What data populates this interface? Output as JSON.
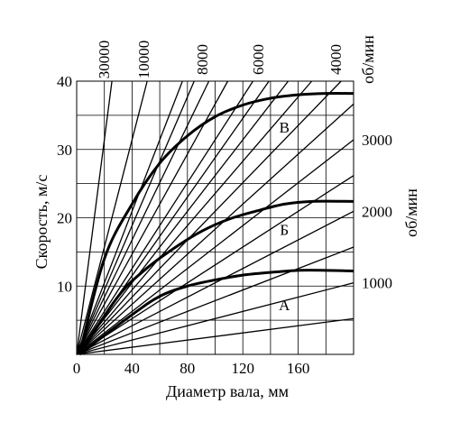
{
  "chart_data": {
    "type": "line",
    "xlabel": "Диаметр вала, мм",
    "ylabel": "Скорость, м/с",
    "xlim": [
      0,
      200
    ],
    "ylim": [
      0,
      40
    ],
    "x_ticks": [
      "0",
      "40",
      "80",
      "120",
      "160"
    ],
    "y_ticks": [
      "10",
      "20",
      "30",
      "40"
    ],
    "grid": true,
    "rpm_unit": "об/мин",
    "rpm_top_labels": [
      "30000",
      "10000",
      "8000",
      "6000",
      "4000"
    ],
    "rpm_right_labels": [
      "3000",
      "2000",
      "1000"
    ],
    "rpm_lines": [
      30000,
      15000,
      10000,
      9000,
      8000,
      7000,
      6000,
      5500,
      5000,
      4500,
      4000,
      3500,
      3000,
      2500,
      2000,
      1500,
      1000,
      500
    ],
    "curves": [
      {
        "name": "В",
        "points": [
          [
            2,
            0
          ],
          [
            20,
            14
          ],
          [
            40,
            22
          ],
          [
            60,
            28
          ],
          [
            80,
            32
          ],
          [
            100,
            34.8
          ],
          [
            120,
            36.5
          ],
          [
            140,
            37.5
          ],
          [
            160,
            38
          ],
          [
            180,
            38.2
          ],
          [
            200,
            38.2
          ]
        ]
      },
      {
        "name": "Б",
        "points": [
          [
            2,
            0
          ],
          [
            30,
            8.5
          ],
          [
            50,
            12.5
          ],
          [
            70,
            15.5
          ],
          [
            90,
            18
          ],
          [
            110,
            19.8
          ],
          [
            130,
            21
          ],
          [
            150,
            22
          ],
          [
            170,
            22.4
          ],
          [
            200,
            22.4
          ]
        ]
      },
      {
        "name": "А",
        "points": [
          [
            2,
            0
          ],
          [
            40,
            5.8
          ],
          [
            60,
            8.5
          ],
          [
            80,
            10
          ],
          [
            100,
            10.9
          ],
          [
            120,
            11.6
          ],
          [
            140,
            12
          ],
          [
            160,
            12.3
          ],
          [
            180,
            12.3
          ],
          [
            200,
            12.2
          ]
        ]
      }
    ]
  }
}
